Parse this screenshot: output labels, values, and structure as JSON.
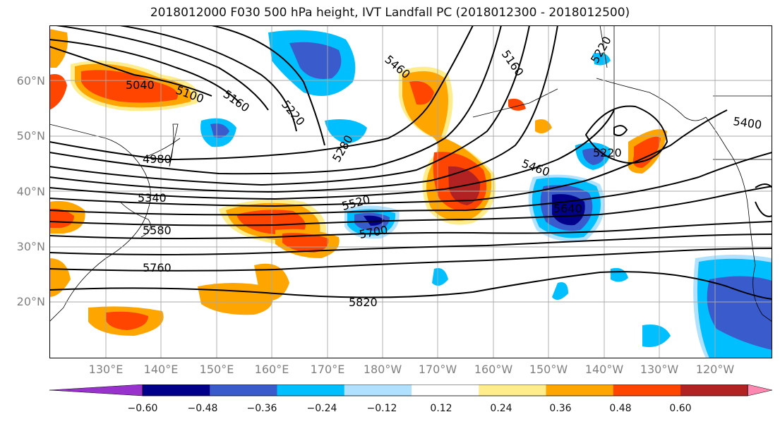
{
  "title": "2018012000 F030 500 hPa height, IVT Landfall PC (2018012300 - 2018012500)",
  "lat_labels": [
    "60°N",
    "50°N",
    "40°N",
    "30°N",
    "20°N"
  ],
  "lon_labels": [
    "130°E",
    "140°E",
    "150°E",
    "160°E",
    "170°E",
    "180°W",
    "170°W",
    "160°W",
    "150°W",
    "140°W",
    "130°W",
    "120°W"
  ],
  "contour_labels": [
    "5040",
    "5100",
    "5160",
    "5220",
    "5280",
    "4980",
    "5340",
    "5580",
    "5760",
    "5820",
    "5460",
    "5520",
    "5700",
    "5160",
    "5220",
    "5400",
    "5220",
    "5460",
    "5640"
  ],
  "colorbar": {
    "ticks": [
      "−0.60",
      "−0.48",
      "−0.36",
      "−0.24",
      "−0.12",
      "0.12",
      "0.24",
      "0.36",
      "0.48",
      "0.60"
    ],
    "colors": [
      "#9932cc",
      "#00008b",
      "#3a5bcc",
      "#00bfff",
      "#b0e2ff",
      "#ffffff",
      "#ffec8b",
      "#ffa500",
      "#ff4500",
      "#b22222",
      "#ff88b0"
    ]
  }
}
